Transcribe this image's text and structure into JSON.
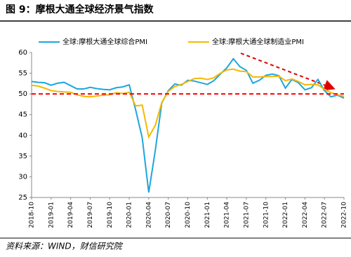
{
  "chart_data": {
    "type": "line",
    "title": "图 9：摩根大通全球经济景气指数",
    "source": "资料来源：WIND，财信研究院",
    "categories": [
      "2018-10",
      null,
      null,
      "2019-01",
      null,
      null,
      "2019-04",
      null,
      null,
      "2019-07",
      null,
      null,
      "2019-10",
      null,
      null,
      "2020-01",
      null,
      null,
      "2020-04",
      null,
      null,
      "2020-07",
      null,
      null,
      "2020-10",
      null,
      null,
      "2021-01",
      null,
      null,
      "2021-04",
      null,
      null,
      "2021-07",
      null,
      null,
      "2021-10",
      null,
      null,
      "2022-01",
      null,
      null,
      "2022-04",
      null,
      null,
      "2022-07",
      null,
      null,
      "2022-10"
    ],
    "series": [
      {
        "name": "全球:摩根大通全球综合PMI",
        "color": "#1ea6dc",
        "values": [
          53.0,
          52.8,
          52.7,
          52.1,
          52.6,
          52.8,
          52.0,
          51.2,
          51.2,
          51.6,
          51.3,
          51.1,
          51.0,
          51.5,
          51.7,
          52.2,
          46.1,
          39.4,
          26.2,
          36.3,
          47.8,
          50.8,
          52.4,
          52.1,
          53.3,
          53.1,
          52.7,
          52.3,
          53.2,
          54.8,
          56.3,
          58.5,
          56.6,
          55.7,
          52.6,
          53.3,
          54.5,
          54.8,
          54.4,
          51.4,
          53.5,
          52.7,
          51.0,
          51.5,
          53.5,
          50.8,
          49.3,
          49.7,
          49.0
        ]
      },
      {
        "name": "全球:摩根大通全球制造业PMI",
        "color": "#f5b800",
        "values": [
          52.1,
          51.9,
          51.4,
          50.8,
          50.6,
          50.5,
          50.4,
          49.8,
          49.4,
          49.3,
          49.5,
          49.7,
          49.8,
          50.3,
          50.1,
          50.4,
          47.1,
          47.3,
          39.6,
          42.4,
          47.9,
          50.6,
          51.8,
          52.3,
          53.0,
          53.7,
          53.8,
          53.5,
          53.9,
          55.0,
          55.8,
          56.0,
          55.5,
          55.4,
          54.1,
          54.1,
          54.2,
          54.2,
          54.3,
          53.2,
          53.6,
          53.0,
          52.2,
          52.3,
          52.2,
          51.1,
          50.3,
          49.8,
          49.4
        ]
      }
    ],
    "ylim": [
      25,
      60
    ],
    "yticks": [
      25,
      30,
      35,
      40,
      45,
      50,
      55,
      60
    ],
    "reference_line": 50,
    "reference_color": "#ff0000"
  }
}
